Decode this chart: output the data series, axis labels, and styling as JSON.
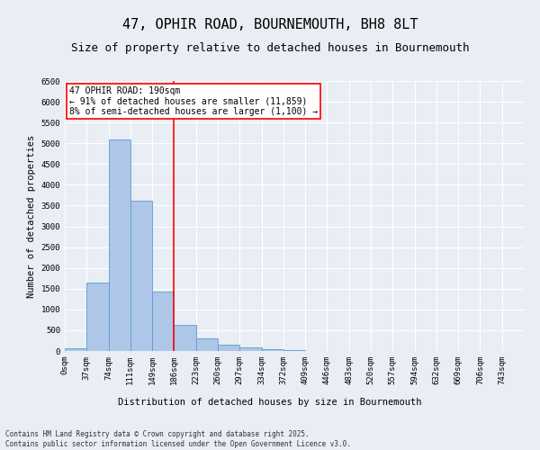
{
  "title": "47, OPHIR ROAD, BOURNEMOUTH, BH8 8LT",
  "subtitle": "Size of property relative to detached houses in Bournemouth",
  "xlabel": "Distribution of detached houses by size in Bournemouth",
  "ylabel": "Number of detached properties",
  "footer_line1": "Contains HM Land Registry data © Crown copyright and database right 2025.",
  "footer_line2": "Contains public sector information licensed under the Open Government Licence v3.0.",
  "bar_labels": [
    "0sqm",
    "37sqm",
    "74sqm",
    "111sqm",
    "149sqm",
    "186sqm",
    "223sqm",
    "260sqm",
    "297sqm",
    "334sqm",
    "372sqm",
    "409sqm",
    "446sqm",
    "483sqm",
    "520sqm",
    "557sqm",
    "594sqm",
    "632sqm",
    "669sqm",
    "706sqm",
    "743sqm"
  ],
  "bar_values": [
    75,
    1650,
    5100,
    3620,
    1420,
    620,
    310,
    145,
    80,
    50,
    30,
    0,
    0,
    0,
    0,
    0,
    0,
    0,
    0,
    0,
    0
  ],
  "bar_color": "#aec6e8",
  "bar_edgecolor": "#5b9bd5",
  "property_line_x": 5,
  "property_line_label": "47 OPHIR ROAD: 190sqm",
  "annotation_line1": "← 91% of detached houses are smaller (11,859)",
  "annotation_line2": "8% of semi-detached houses are larger (1,100) →",
  "vline_color": "red",
  "ylim": [
    0,
    6500
  ],
  "yticks": [
    0,
    500,
    1000,
    1500,
    2000,
    2500,
    3000,
    3500,
    4000,
    4500,
    5000,
    5500,
    6000,
    6500
  ],
  "bg_color": "#e8eef4",
  "grid_color": "white",
  "title_fontsize": 11,
  "subtitle_fontsize": 9,
  "label_fontsize": 7.5,
  "tick_fontsize": 6.5,
  "annotation_fontsize": 7,
  "footer_fontsize": 5.5
}
